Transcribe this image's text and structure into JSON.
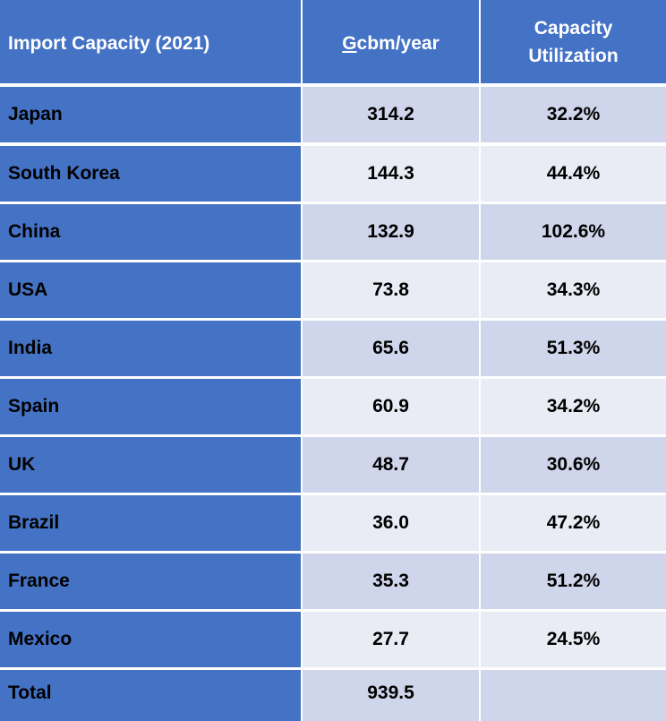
{
  "header": {
    "col1": "Import Capacity (2021)",
    "col2": "Gcbm/year",
    "col3_line1": "Capacity",
    "col3_line2": "Utilization"
  },
  "rows": [
    {
      "country": "Japan",
      "capacity": "314.2",
      "utilization": "32.2%"
    },
    {
      "country": "South Korea",
      "capacity": "144.3",
      "utilization": "44.4%"
    },
    {
      "country": "China",
      "capacity": "132.9",
      "utilization": "102.6%"
    },
    {
      "country": "USA",
      "capacity": "73.8",
      "utilization": "34.3%"
    },
    {
      "country": "India",
      "capacity": "65.6",
      "utilization": "51.3%"
    },
    {
      "country": "Spain",
      "capacity": "60.9",
      "utilization": "34.2%"
    },
    {
      "country": "UK",
      "capacity": "48.7",
      "utilization": "30.6%"
    },
    {
      "country": "Brazil",
      "capacity": "36.0",
      "utilization": "47.2%"
    },
    {
      "country": "France",
      "capacity": "35.3",
      "utilization": "51.2%"
    },
    {
      "country": "Mexico",
      "capacity": "27.7",
      "utilization": "24.5%"
    }
  ],
  "total": {
    "label": "Total",
    "capacity": "939.5",
    "utilization": ""
  },
  "colors": {
    "header_bg": "#4472c4",
    "first_col_bg": "#4472c4",
    "row_shade_dark": "#cfd5ea",
    "row_shade_light": "#e9ebf5"
  }
}
